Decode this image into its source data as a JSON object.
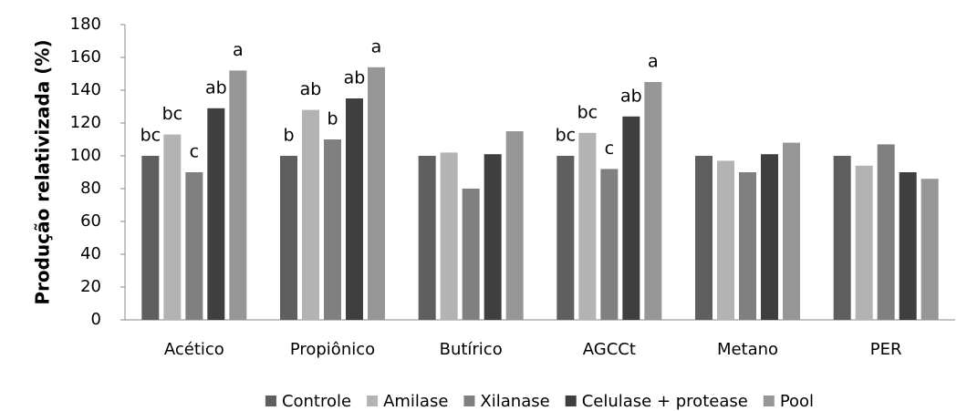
{
  "chart_data": {
    "type": "bar",
    "y_label": "Produção relativizada (%)",
    "categories": [
      "Acético",
      "Propiônico",
      "Butírico",
      "AGCCt",
      "Metano",
      "PER"
    ],
    "series": [
      {
        "name": "Controle",
        "color": "#5f5f5f",
        "values": [
          100,
          100,
          100,
          100,
          100,
          100
        ],
        "annotations": [
          "bc",
          "b",
          null,
          "bc",
          null,
          null
        ]
      },
      {
        "name": "Amilase",
        "color": "#b3b3b3",
        "values": [
          113,
          128,
          102,
          114,
          97,
          94
        ],
        "annotations": [
          "bc",
          "ab",
          null,
          "bc",
          null,
          null
        ]
      },
      {
        "name": "Xilanase",
        "color": "#808080",
        "values": [
          90,
          110,
          80,
          92,
          90,
          107
        ],
        "annotations": [
          "c",
          "b",
          null,
          "c",
          null,
          null
        ]
      },
      {
        "name": "Celulase + protease",
        "color": "#3f3f3f",
        "values": [
          129,
          135,
          101,
          124,
          101,
          90
        ],
        "annotations": [
          "ab",
          "ab",
          null,
          "ab",
          null,
          null
        ]
      },
      {
        "name": "Pool",
        "color": "#969696",
        "values": [
          152,
          154,
          115,
          145,
          108,
          86
        ],
        "annotations": [
          "a",
          "a",
          null,
          "a",
          null,
          null
        ]
      }
    ],
    "ylim": [
      0,
      180
    ],
    "yticks": [
      0,
      20,
      40,
      60,
      80,
      100,
      120,
      140,
      160,
      180
    ],
    "grid": false,
    "legend": "bottom"
  }
}
